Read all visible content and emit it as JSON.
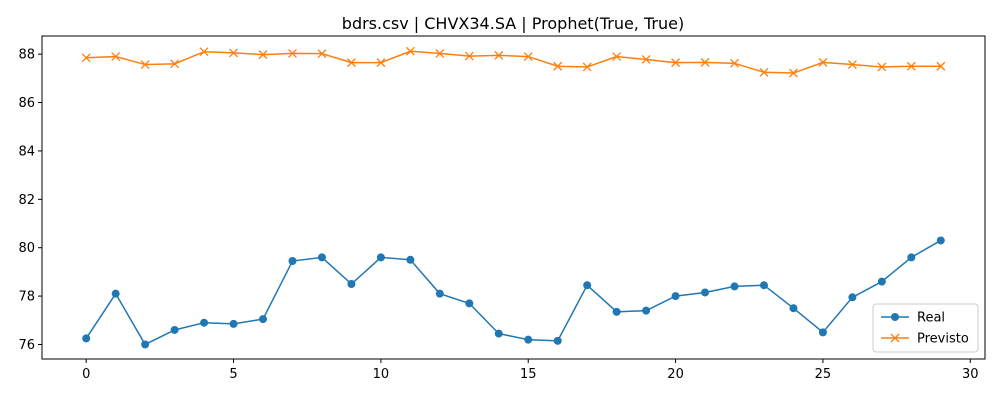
{
  "chart_data": {
    "type": "line",
    "title": "bdrs.csv | CHVX34.SA | Prophet(True, True)",
    "xlabel": "",
    "ylabel": "",
    "xlim": [
      -1.5,
      30.5
    ],
    "ylim": [
      75.4,
      88.75
    ],
    "xticks": [
      0,
      5,
      10,
      15,
      20,
      25,
      30
    ],
    "yticks": [
      76,
      78,
      80,
      82,
      84,
      86,
      88
    ],
    "grid": false,
    "legend_position": "lower-right",
    "x": [
      0,
      1,
      2,
      3,
      4,
      5,
      6,
      7,
      8,
      9,
      10,
      11,
      12,
      13,
      14,
      15,
      16,
      17,
      18,
      19,
      20,
      21,
      22,
      23,
      24,
      25,
      26,
      27,
      28,
      29
    ],
    "series": [
      {
        "name": "Real",
        "color": "#1f77b4",
        "marker": "circle",
        "values": [
          76.25,
          78.1,
          76.0,
          76.6,
          76.9,
          76.85,
          77.05,
          79.45,
          79.6,
          78.5,
          79.6,
          79.5,
          78.1,
          77.7,
          76.45,
          76.2,
          76.15,
          78.45,
          77.35,
          77.4,
          78.0,
          78.15,
          78.4,
          78.45,
          77.5,
          76.5,
          77.95,
          78.6,
          79.6,
          80.3
        ]
      },
      {
        "name": "Previsto",
        "color": "#ff7f0e",
        "marker": "x",
        "values": [
          87.85,
          87.9,
          87.57,
          87.6,
          88.1,
          88.05,
          87.98,
          88.03,
          88.02,
          87.65,
          87.65,
          88.12,
          88.03,
          87.92,
          87.95,
          87.9,
          87.5,
          87.47,
          87.9,
          87.78,
          87.65,
          87.66,
          87.62,
          87.25,
          87.22,
          87.66,
          87.57,
          87.47,
          87.5,
          87.5
        ]
      }
    ]
  }
}
